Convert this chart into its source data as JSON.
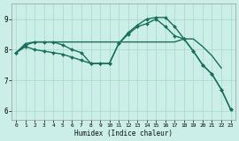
{
  "xlabel": "Humidex (Indice chaleur)",
  "bg_color": "#cceee8",
  "grid_color": "#aaddcc",
  "line_color": "#1a6e5e",
  "xlim": [
    -0.5,
    23.5
  ],
  "ylim": [
    5.7,
    9.5
  ],
  "xticks": [
    0,
    1,
    2,
    3,
    4,
    5,
    6,
    7,
    8,
    9,
    10,
    11,
    12,
    13,
    14,
    15,
    16,
    17,
    18,
    19,
    20,
    21,
    22,
    23
  ],
  "yticks": [
    6,
    7,
    8,
    9
  ],
  "series": [
    {
      "x": [
        0,
        1,
        2,
        3,
        4,
        5,
        6,
        7,
        8,
        9,
        10,
        11,
        12,
        13,
        14,
        15,
        16,
        17,
        18,
        19,
        20,
        21,
        22,
        23
      ],
      "y": [
        7.9,
        8.2,
        8.25,
        8.25,
        8.25,
        8.25,
        8.25,
        8.25,
        8.25,
        8.25,
        8.25,
        8.25,
        8.25,
        8.25,
        8.25,
        8.25,
        8.25,
        8.25,
        8.35,
        8.35,
        8.1,
        7.8,
        7.4,
        null
      ],
      "has_markers": false,
      "linewidth": 1.0,
      "markersize": 0
    },
    {
      "x": [
        0,
        1,
        2,
        3,
        4,
        5,
        6,
        7,
        8,
        9,
        10,
        11,
        12,
        13,
        14,
        15,
        16,
        17,
        18,
        19,
        20,
        21,
        22,
        23
      ],
      "y": [
        7.9,
        8.15,
        8.25,
        8.25,
        8.25,
        8.15,
        8.0,
        7.9,
        7.55,
        7.55,
        7.55,
        8.2,
        8.55,
        8.8,
        9.0,
        9.05,
        9.05,
        8.75,
        8.35,
        7.95,
        7.5,
        7.2,
        6.7,
        6.05
      ],
      "has_markers": true,
      "linewidth": 1.0,
      "markersize": 2.0
    },
    {
      "x": [
        0,
        1,
        2,
        3,
        4,
        5,
        6,
        7,
        8,
        9,
        10,
        11,
        12,
        13,
        14,
        15,
        16,
        17,
        18,
        19,
        20,
        21,
        22,
        23
      ],
      "y": [
        7.9,
        8.1,
        8.0,
        7.95,
        7.9,
        7.85,
        7.75,
        7.65,
        7.55,
        7.55,
        7.55,
        8.2,
        8.5,
        8.75,
        8.85,
        9.0,
        8.75,
        8.45,
        8.35,
        7.95,
        7.5,
        7.2,
        6.7,
        6.05
      ],
      "has_markers": true,
      "linewidth": 1.0,
      "markersize": 2.0
    }
  ]
}
